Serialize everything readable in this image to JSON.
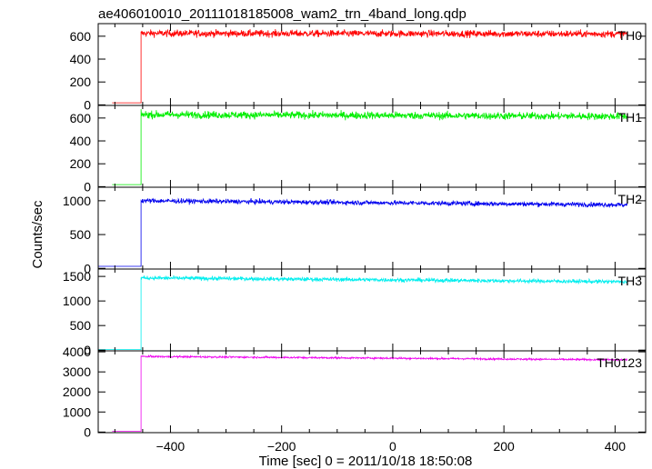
{
  "title": "ae406010010_20111018185008_wam2_trn_4band_long.qdp",
  "chart_data": {
    "type": "line",
    "title": "ae406010010_20111018185008_wam2_trn_4band_long.qdp",
    "xlabel": "Time [sec] 0 = 2011/10/18 18:50:08",
    "ylabel": "Counts/sec",
    "xlim": [
      -530,
      455
    ],
    "xticks": [
      -400,
      -200,
      0,
      200,
      400
    ],
    "step_time": -453,
    "series": [
      {
        "name": "TH0",
        "color": "#ff0000",
        "ylim": [
          -5,
          710
        ],
        "yticks": [
          0,
          200,
          400,
          600
        ],
        "pre_level": 18,
        "pre_start": -505,
        "level": 625,
        "noise": 30,
        "trend": -5
      },
      {
        "name": "TH1",
        "color": "#00ee00",
        "ylim": [
          -5,
          710
        ],
        "yticks": [
          0,
          200,
          400,
          600
        ],
        "pre_level": 18,
        "pre_start": -505,
        "level": 630,
        "noise": 32,
        "trend": -15
      },
      {
        "name": "TH2",
        "color": "#0000ee",
        "ylim": [
          -10,
          1200
        ],
        "yticks": [
          0,
          500,
          1000
        ],
        "pre_level": 30,
        "pre_start": -530,
        "level": 1000,
        "noise": 35,
        "trend": -60
      },
      {
        "name": "TH3",
        "color": "#00eeee",
        "ylim": [
          -15,
          1650
        ],
        "yticks": [
          0,
          500,
          1000,
          1500
        ],
        "pre_level": 10,
        "pre_start": -530,
        "level": 1470,
        "noise": 40,
        "trend": -80
      },
      {
        "name": "TH0123",
        "color": "#ee00ee",
        "ylim": [
          -30,
          4050
        ],
        "yticks": [
          0,
          1000,
          2000,
          3000,
          4000
        ],
        "pre_level": 40,
        "pre_start": -505,
        "level": 3770,
        "noise": 45,
        "trend": -170
      }
    ]
  }
}
